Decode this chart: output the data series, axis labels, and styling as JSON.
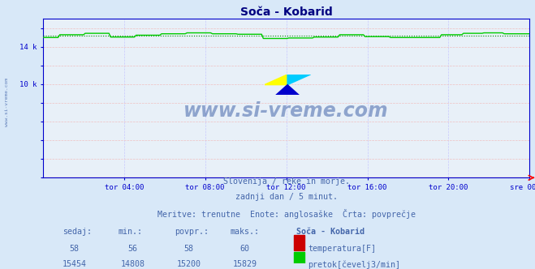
{
  "title": "Soča - Kobarid",
  "bg_color": "#d8e8f8",
  "plot_bg_color": "#e8f0f8",
  "title_color": "#000080",
  "grid_color_v": "#c8c8ff",
  "grid_color_h": "#f0c0c0",
  "axis_color": "#0000cc",
  "line_color_flow": "#00cc00",
  "line_color_temp": "#cc0000",
  "avg_line_color": "#008800",
  "x_tick_labels": [
    "tor 04:00",
    "tor 08:00",
    "tor 12:00",
    "tor 16:00",
    "tor 20:00",
    "sre 00:00"
  ],
  "x_tick_positions": [
    0.1667,
    0.3333,
    0.5,
    0.6667,
    0.8333,
    1.0
  ],
  "y_ticks": [
    0,
    2000,
    4000,
    6000,
    8000,
    10000,
    12000,
    14000,
    16000
  ],
  "y_tick_labels": [
    "",
    "",
    "",
    "",
    "",
    "10 k",
    "",
    "14 k",
    ""
  ],
  "ylim": [
    0,
    17000
  ],
  "subtitle_lines": [
    "Slovenija / reke in morje.",
    "zadnji dan / 5 minut.",
    "Meritve: trenutne  Enote: anglosaške  Črta: povprečje"
  ],
  "subtitle_color": "#4466aa",
  "watermark_text": "www.si-vreme.com",
  "watermark_color": "#4466aa",
  "table_headers": [
    "sedaj:",
    "min.:",
    "povpr.:",
    "maks.:",
    "Soča - Kobarid"
  ],
  "table_row1": [
    "58",
    "56",
    "58",
    "60"
  ],
  "table_row2": [
    "15454",
    "14808",
    "15200",
    "15829"
  ],
  "legend_temp_label": "temperatura[F]",
  "legend_flow_label": "pretok[čevelj3/min]",
  "temp_color": "#cc0000",
  "flow_color": "#00cc00",
  "avg_flow": 15200,
  "avg_temp": 58,
  "n_points": 288,
  "flow_base": 15200,
  "temp_base": 58,
  "side_label": "www.si-vreme.com"
}
